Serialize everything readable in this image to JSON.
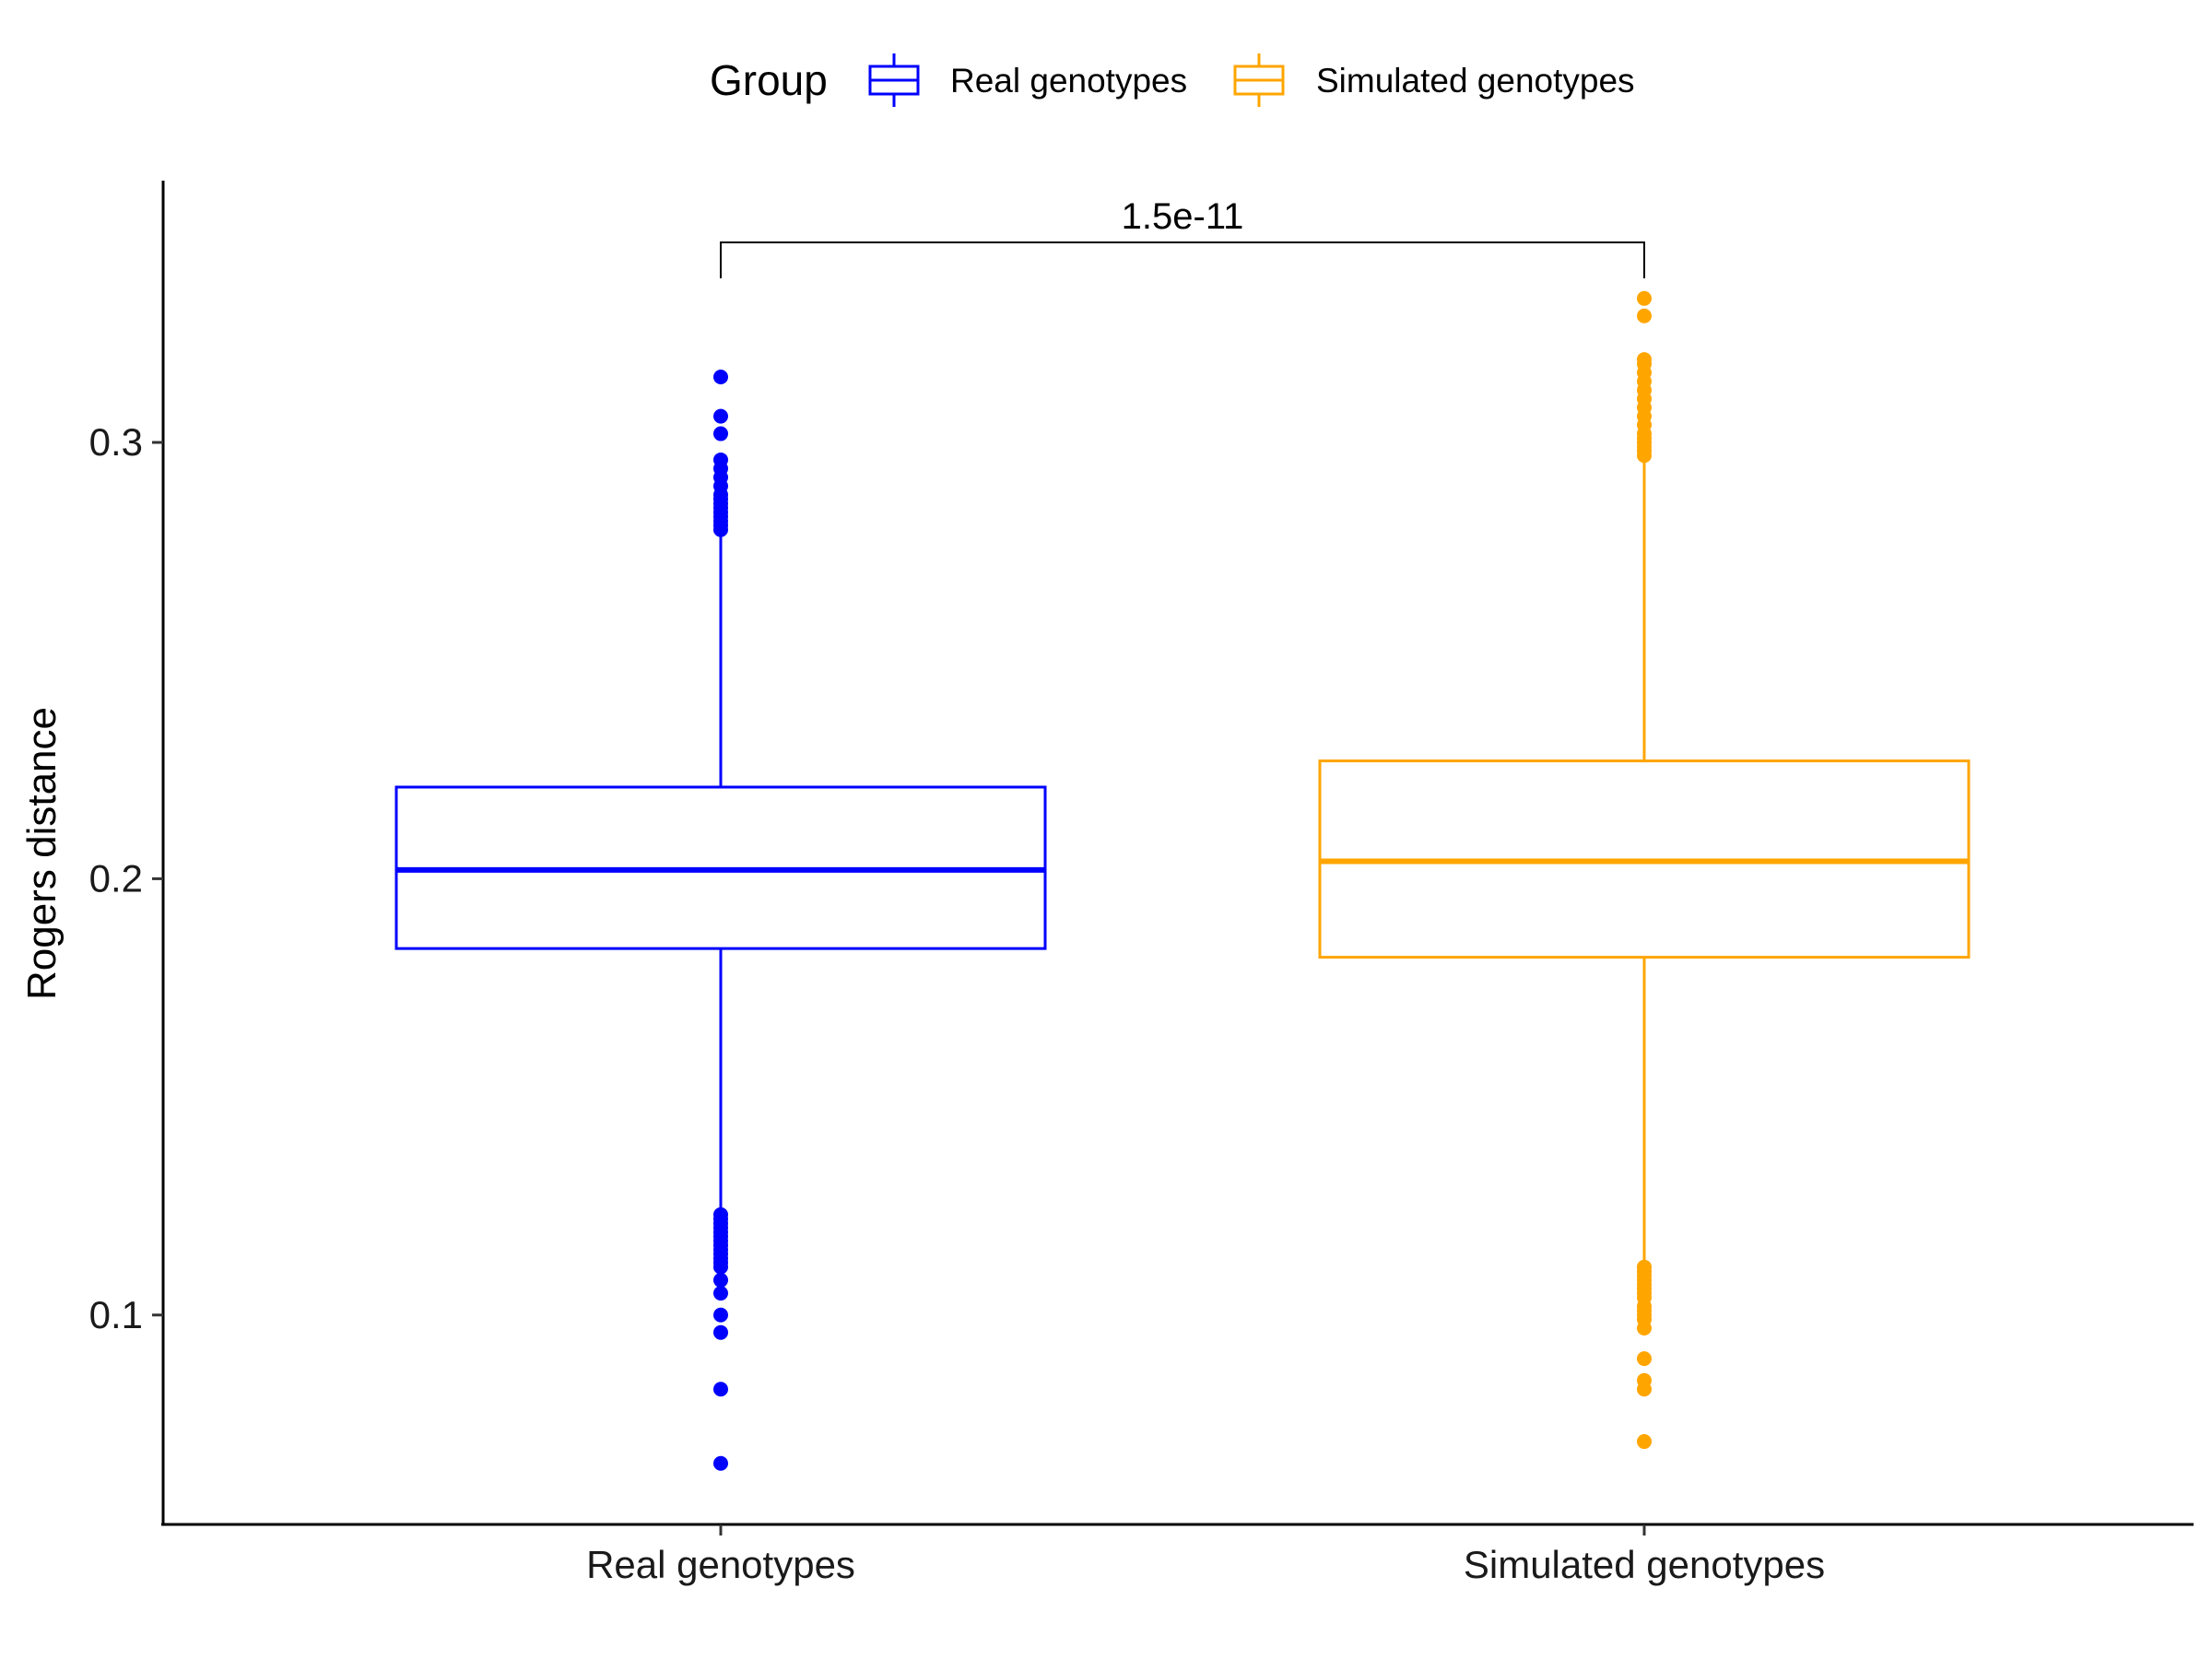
{
  "chart_data": {
    "type": "boxplot",
    "title": "",
    "xlabel": "",
    "ylabel": "Rogers distance",
    "ylim": [
      0.052,
      0.36
    ],
    "yticks": [
      0.1,
      0.2,
      0.3
    ],
    "ytick_labels": [
      "0.1",
      "0.2",
      "0.3"
    ],
    "categories": [
      "Real genotypes",
      "Simulated genotypes"
    ],
    "legend": {
      "title": "Group",
      "position": "top",
      "entries": [
        "Real genotypes",
        "Simulated genotypes"
      ]
    },
    "series": [
      {
        "name": "Real genotypes",
        "color": "#0000ff",
        "min": 0.124,
        "q1": 0.184,
        "median": 0.202,
        "q3": 0.221,
        "max": 0.279,
        "outliers": [
          0.066,
          0.083,
          0.096,
          0.1,
          0.105,
          0.108,
          0.111,
          0.112,
          0.113,
          0.114,
          0.115,
          0.116,
          0.117,
          0.118,
          0.119,
          0.12,
          0.121,
          0.122,
          0.123,
          0.28,
          0.281,
          0.282,
          0.283,
          0.284,
          0.285,
          0.286,
          0.287,
          0.288,
          0.29,
          0.292,
          0.294,
          0.296,
          0.302,
          0.306,
          0.315
        ]
      },
      {
        "name": "Simulated genotypes",
        "color": "#ffa500",
        "min": 0.112,
        "q1": 0.182,
        "median": 0.204,
        "q3": 0.227,
        "max": 0.296,
        "outliers": [
          0.071,
          0.083,
          0.085,
          0.09,
          0.097,
          0.099,
          0.1,
          0.101,
          0.102,
          0.104,
          0.105,
          0.106,
          0.107,
          0.108,
          0.109,
          0.11,
          0.111,
          0.297,
          0.298,
          0.299,
          0.3,
          0.301,
          0.302,
          0.304,
          0.306,
          0.308,
          0.31,
          0.312,
          0.314,
          0.316,
          0.318,
          0.319,
          0.329,
          0.333
        ]
      }
    ],
    "annotations": [
      {
        "type": "bracket",
        "between": [
          "Real genotypes",
          "Simulated genotypes"
        ],
        "label": "1.5e-11"
      }
    ]
  }
}
